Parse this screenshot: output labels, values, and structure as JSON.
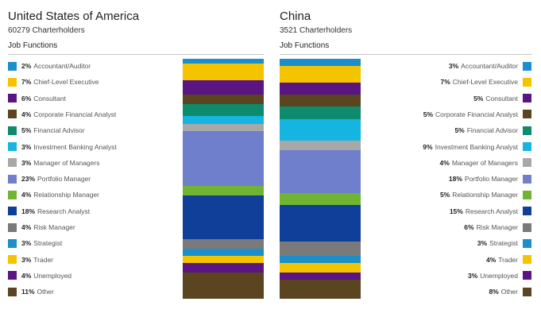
{
  "chart_data": [
    {
      "type": "stacked-bar",
      "title": "United States of America",
      "subtitle": "60279 Charterholders",
      "section_label": "Job Functions",
      "categories": [
        "Accountant/Auditor",
        "Chief-Level Executive",
        "Consultant",
        "Corporate Financial Analyst",
        "Financial Advisor",
        "Investment Banking Analyst",
        "Manager of Managers",
        "Portfolio Manager",
        "Relationship Manager",
        "Research Analyst",
        "Risk Manager",
        "Strategist",
        "Trader",
        "Unemployed",
        "Other"
      ],
      "values": [
        2,
        7,
        6,
        4,
        5,
        3,
        3,
        23,
        4,
        18,
        4,
        3,
        3,
        4,
        11
      ],
      "unit": "%",
      "legend_side": "left"
    },
    {
      "type": "stacked-bar",
      "title": "China",
      "subtitle": "3521 Charterholders",
      "section_label": "Job Functions",
      "categories": [
        "Accountant/Auditor",
        "Chief-Level Executive",
        "Consultant",
        "Corporate Financial Analyst",
        "Financial Advisor",
        "Investment Banking Analyst",
        "Manager of Managers",
        "Portfolio Manager",
        "Relationship Manager",
        "Research Analyst",
        "Risk Manager",
        "Strategist",
        "Trader",
        "Unemployed",
        "Other"
      ],
      "values": [
        3,
        7,
        5,
        5,
        5,
        9,
        4,
        18,
        5,
        15,
        6,
        3,
        4,
        3,
        8
      ],
      "unit": "%",
      "legend_side": "right"
    }
  ],
  "colors": [
    "#1a8fc9",
    "#f5c400",
    "#5a1583",
    "#5b4420",
    "#0e8a6c",
    "#16b4e0",
    "#a8a8a8",
    "#6f7fcc",
    "#6fb531",
    "#0f3f99",
    "#7a7a7a",
    "#1a8fc9",
    "#f5c400",
    "#5a1583",
    "#5b4420"
  ],
  "watermark": ""
}
